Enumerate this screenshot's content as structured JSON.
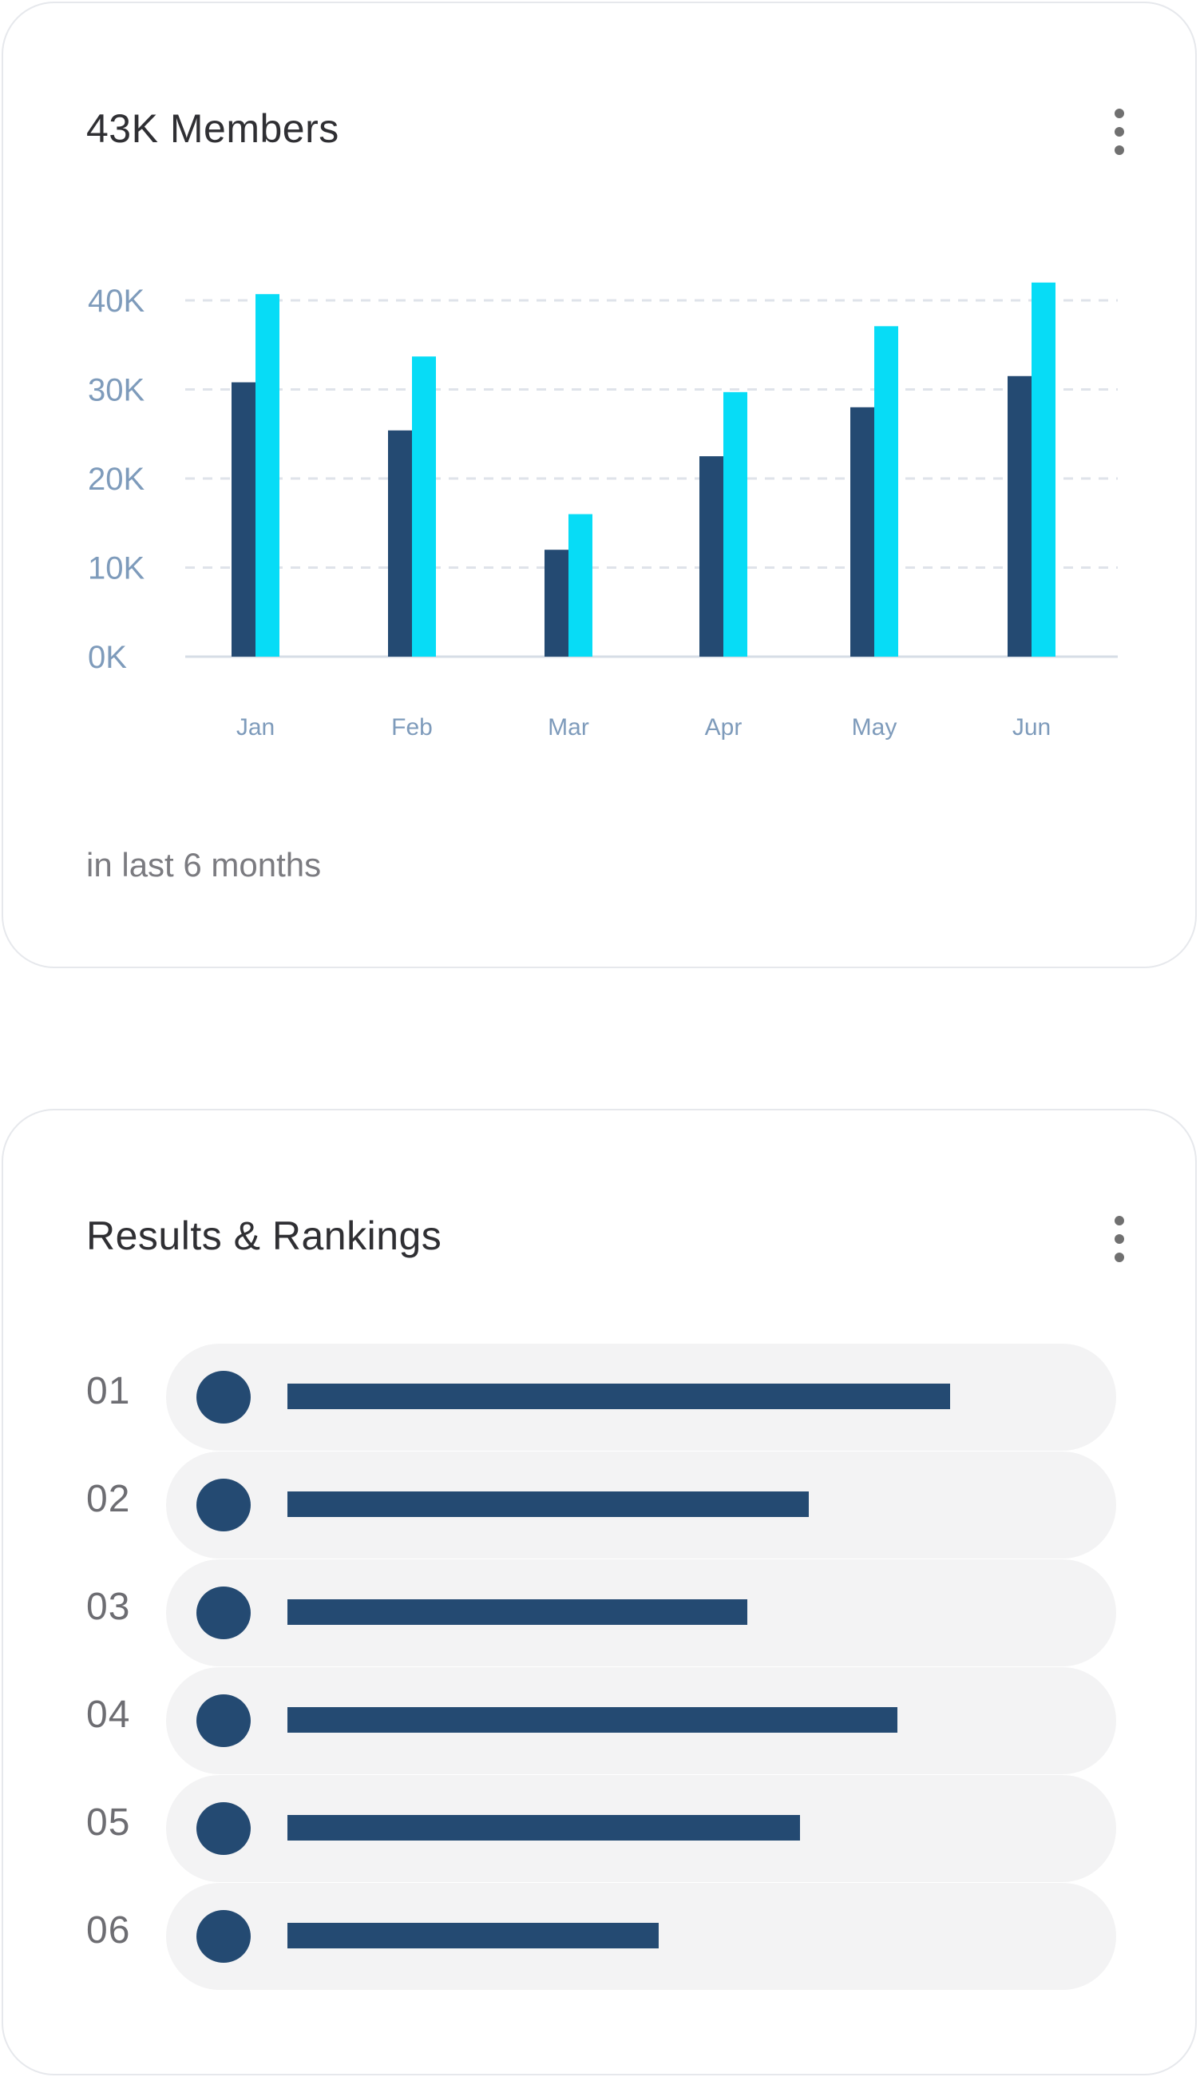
{
  "members_card": {
    "title": "43K Members",
    "footnote": "in last 6 months",
    "menu_icon": "kebab-vertical-icon"
  },
  "chart_data": {
    "type": "bar",
    "categories": [
      "Jan",
      "Feb",
      "Mar",
      "Apr",
      "May",
      "Jun"
    ],
    "series": [
      {
        "values": [
          30800,
          25400,
          12000,
          22500,
          28000,
          31500
        ],
        "color": "#244a72"
      },
      {
        "values": [
          40700,
          33700,
          16000,
          29700,
          37100,
          42000
        ],
        "color": "#07dcf6"
      }
    ],
    "y_ticks": [
      "0K",
      "10K",
      "20K",
      "30K",
      "40K"
    ],
    "y_tick_values": [
      0,
      10000,
      20000,
      30000,
      40000
    ],
    "ylim": [
      0,
      40000
    ],
    "grid": true,
    "title": "",
    "xlabel": "",
    "ylabel": ""
  },
  "rankings_card": {
    "title": "Results & Rankings",
    "menu_icon": "kebab-vertical-icon",
    "items": [
      {
        "rank": "01",
        "value": 0.75
      },
      {
        "rank": "02",
        "value": 0.59
      },
      {
        "rank": "03",
        "value": 0.52
      },
      {
        "rank": "04",
        "value": 0.69
      },
      {
        "rank": "05",
        "value": 0.58
      },
      {
        "rank": "06",
        "value": 0.42
      }
    ]
  }
}
